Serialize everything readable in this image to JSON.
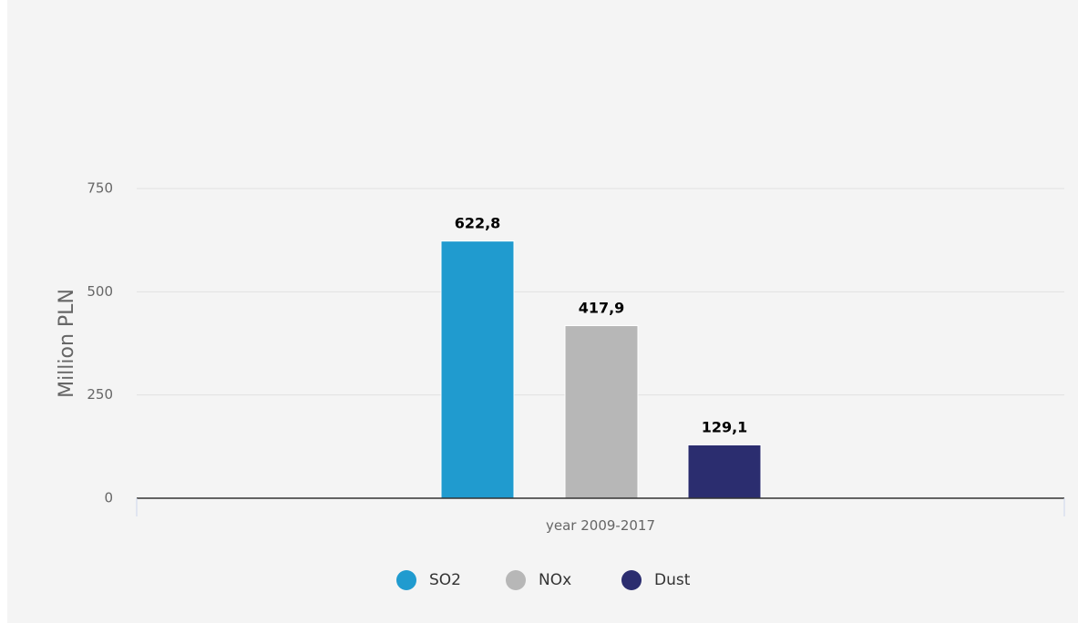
{
  "chart_data": {
    "type": "bar",
    "ylabel": "Million PLN",
    "xlabel": "",
    "category": "year 2009-2017",
    "ylim": [
      0,
      750
    ],
    "yticks": [
      0,
      250,
      500,
      750
    ],
    "grid": true,
    "legend": "bottom-center",
    "series": [
      {
        "name": "SO2",
        "value": 622.8,
        "label": "622,8",
        "color": "#209bcf"
      },
      {
        "name": "NOx",
        "value": 417.9,
        "label": "417,9",
        "color": "#b7b7b7"
      },
      {
        "name": "Dust",
        "value": 129.1,
        "label": "129,1",
        "color": "#2b2d6f"
      }
    ]
  }
}
